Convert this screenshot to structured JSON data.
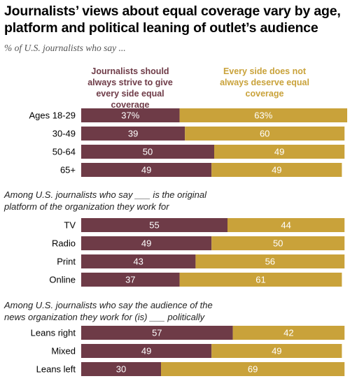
{
  "header": {
    "title": "Journalists’ views about equal coverage vary by age, platform and political leaning of outlet’s audience",
    "subtitle": "% of U.S. journalists who say ..."
  },
  "legend": {
    "series_a": "Journalists should always strive to give every side equal coverage",
    "series_b": "Every side does not always deserve equal coverage"
  },
  "colors": {
    "series_a": "#6e3b47",
    "series_b": "#c9a23a"
  },
  "sections": {
    "platform_label": "Among U.S. journalists who say ___ is the original platform of the organization they work for",
    "audience_label": "Among U.S. journalists who say the audience of the news organization they work for (is) ___ politically"
  },
  "chart_data": {
    "type": "bar",
    "stacked": true,
    "orientation": "horizontal",
    "title": "Journalists’ views about equal coverage vary by age, platform and political leaning of outlet’s audience",
    "xlim": [
      0,
      100
    ],
    "groups": [
      {
        "label": "",
        "categories": [
          "Ages 18-29",
          "30-49",
          "50-64",
          "65+"
        ],
        "series": [
          {
            "name": "Journalists should always strive to give every side equal coverage",
            "values": [
              37,
              39,
              50,
              49
            ],
            "labels": [
              "37%",
              "39",
              "50",
              "49"
            ]
          },
          {
            "name": "Every side does not always deserve equal coverage",
            "values": [
              63,
              60,
              49,
              49
            ],
            "labels": [
              "63%",
              "60",
              "49",
              "49"
            ]
          }
        ]
      },
      {
        "label": "Among U.S. journalists who say ___ is the original platform of the organization they work for",
        "categories": [
          "TV",
          "Radio",
          "Print",
          "Online"
        ],
        "series": [
          {
            "name": "Journalists should always strive to give every side equal coverage",
            "values": [
              55,
              49,
              43,
              37
            ],
            "labels": [
              "55",
              "49",
              "43",
              "37"
            ]
          },
          {
            "name": "Every side does not always deserve equal coverage",
            "values": [
              44,
              50,
              56,
              61
            ],
            "labels": [
              "44",
              "50",
              "56",
              "61"
            ]
          }
        ]
      },
      {
        "label": "Among U.S. journalists who say the audience of the news organization they work for (is) ___ politically",
        "categories": [
          "Leans right",
          "Mixed",
          "Leans left"
        ],
        "series": [
          {
            "name": "Journalists should always strive to give every side equal coverage",
            "values": [
              57,
              49,
              30
            ],
            "labels": [
              "57",
              "49",
              "30"
            ]
          },
          {
            "name": "Every side does not always deserve equal coverage",
            "values": [
              42,
              49,
              69
            ],
            "labels": [
              "42",
              "49",
              "69"
            ]
          }
        ]
      }
    ]
  }
}
